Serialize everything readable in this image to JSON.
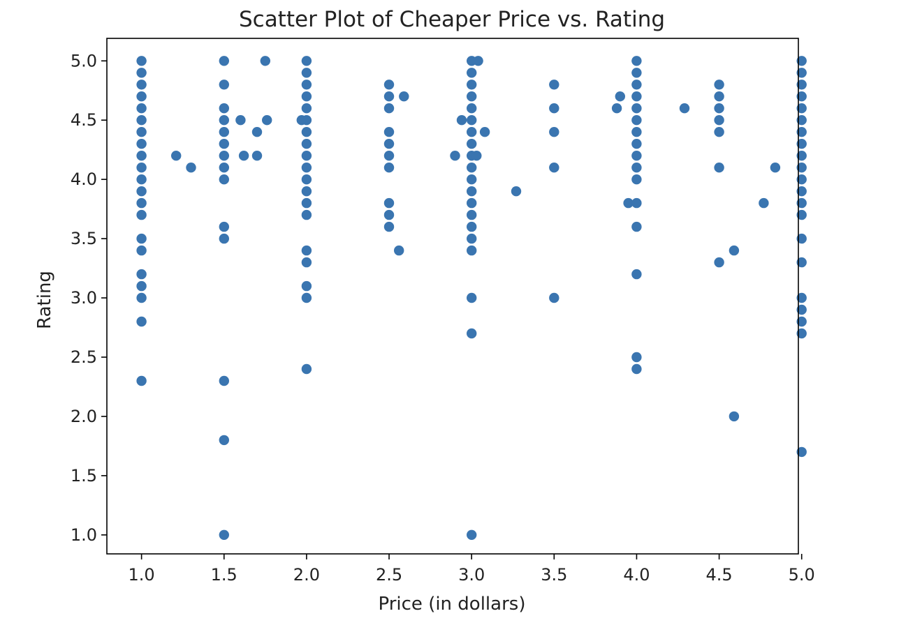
{
  "chart_data": {
    "type": "scatter",
    "title": "Scatter Plot of Cheaper Price vs. Rating",
    "xlabel": "Price (in dollars)",
    "ylabel": "Rating",
    "xlim": [
      0.79,
      4.98
    ],
    "ylim": [
      0.84,
      5.19
    ],
    "xticks": [
      1.0,
      1.5,
      2.0,
      2.5,
      3.0,
      3.5,
      4.0,
      4.5,
      5.0
    ],
    "xtick_labels": [
      "1.0",
      "1.5",
      "2.0",
      "2.5",
      "3.0",
      "3.5",
      "4.0",
      "4.5",
      "5.0"
    ],
    "yticks": [
      1.0,
      1.5,
      2.0,
      2.5,
      3.0,
      3.5,
      4.0,
      4.5,
      5.0
    ],
    "ytick_labels": [
      "1.0",
      "1.5",
      "2.0",
      "2.5",
      "3.0",
      "3.5",
      "4.0",
      "4.5",
      "5.0"
    ],
    "grid": false,
    "marker_color": "#3a75b0",
    "points": [
      [
        1.0,
        5.0
      ],
      [
        1.0,
        4.9
      ],
      [
        1.0,
        4.8
      ],
      [
        1.0,
        4.7
      ],
      [
        1.0,
        4.6
      ],
      [
        1.0,
        4.5
      ],
      [
        1.0,
        4.4
      ],
      [
        1.0,
        4.3
      ],
      [
        1.0,
        4.2
      ],
      [
        1.0,
        4.1
      ],
      [
        1.0,
        4.0
      ],
      [
        1.0,
        3.9
      ],
      [
        1.0,
        3.8
      ],
      [
        1.0,
        3.7
      ],
      [
        1.0,
        3.5
      ],
      [
        1.0,
        3.4
      ],
      [
        1.0,
        3.2
      ],
      [
        1.0,
        3.1
      ],
      [
        1.0,
        3.0
      ],
      [
        1.0,
        2.8
      ],
      [
        1.0,
        2.3
      ],
      [
        1.21,
        4.2
      ],
      [
        1.3,
        4.1
      ],
      [
        1.5,
        5.0
      ],
      [
        1.5,
        4.8
      ],
      [
        1.5,
        4.6
      ],
      [
        1.5,
        4.5
      ],
      [
        1.5,
        4.4
      ],
      [
        1.5,
        4.3
      ],
      [
        1.5,
        4.2
      ],
      [
        1.5,
        4.1
      ],
      [
        1.5,
        4.0
      ],
      [
        1.5,
        3.6
      ],
      [
        1.5,
        3.5
      ],
      [
        1.5,
        2.3
      ],
      [
        1.5,
        1.8
      ],
      [
        1.5,
        1.0
      ],
      [
        1.6,
        4.5
      ],
      [
        1.62,
        4.2
      ],
      [
        1.7,
        4.4
      ],
      [
        1.7,
        4.2
      ],
      [
        1.75,
        5.0
      ],
      [
        1.76,
        4.5
      ],
      [
        1.97,
        4.5
      ],
      [
        2.0,
        5.0
      ],
      [
        2.0,
        4.9
      ],
      [
        2.0,
        4.8
      ],
      [
        2.0,
        4.7
      ],
      [
        2.0,
        4.6
      ],
      [
        2.0,
        4.5
      ],
      [
        2.0,
        4.4
      ],
      [
        2.0,
        4.3
      ],
      [
        2.0,
        4.2
      ],
      [
        2.0,
        4.1
      ],
      [
        2.0,
        4.0
      ],
      [
        2.0,
        3.9
      ],
      [
        2.0,
        3.8
      ],
      [
        2.0,
        3.7
      ],
      [
        2.0,
        3.4
      ],
      [
        2.0,
        3.3
      ],
      [
        2.0,
        3.1
      ],
      [
        2.0,
        3.0
      ],
      [
        2.0,
        2.4
      ],
      [
        2.5,
        4.8
      ],
      [
        2.5,
        4.7
      ],
      [
        2.5,
        4.6
      ],
      [
        2.5,
        4.4
      ],
      [
        2.5,
        4.3
      ],
      [
        2.5,
        4.2
      ],
      [
        2.5,
        4.1
      ],
      [
        2.5,
        3.8
      ],
      [
        2.5,
        3.7
      ],
      [
        2.5,
        3.6
      ],
      [
        2.56,
        3.4
      ],
      [
        2.59,
        4.7
      ],
      [
        2.9,
        4.2
      ],
      [
        2.94,
        4.5
      ],
      [
        3.0,
        5.0
      ],
      [
        3.0,
        4.9
      ],
      [
        3.0,
        4.8
      ],
      [
        3.0,
        4.7
      ],
      [
        3.0,
        4.6
      ],
      [
        3.0,
        4.5
      ],
      [
        3.0,
        4.4
      ],
      [
        3.0,
        4.3
      ],
      [
        3.0,
        4.2
      ],
      [
        3.0,
        4.1
      ],
      [
        3.0,
        4.0
      ],
      [
        3.0,
        3.9
      ],
      [
        3.0,
        3.8
      ],
      [
        3.0,
        3.7
      ],
      [
        3.0,
        3.6
      ],
      [
        3.0,
        3.5
      ],
      [
        3.0,
        3.4
      ],
      [
        3.0,
        3.0
      ],
      [
        3.0,
        2.7
      ],
      [
        3.0,
        1.0
      ],
      [
        3.03,
        4.2
      ],
      [
        3.04,
        5.0
      ],
      [
        3.08,
        4.4
      ],
      [
        3.27,
        3.9
      ],
      [
        3.5,
        4.8
      ],
      [
        3.5,
        4.6
      ],
      [
        3.5,
        4.4
      ],
      [
        3.5,
        4.1
      ],
      [
        3.5,
        3.0
      ],
      [
        3.88,
        4.6
      ],
      [
        3.9,
        4.7
      ],
      [
        3.95,
        3.8
      ],
      [
        4.0,
        5.0
      ],
      [
        4.0,
        4.9
      ],
      [
        4.0,
        4.8
      ],
      [
        4.0,
        4.7
      ],
      [
        4.0,
        4.6
      ],
      [
        4.0,
        4.5
      ],
      [
        4.0,
        4.4
      ],
      [
        4.0,
        4.3
      ],
      [
        4.0,
        4.2
      ],
      [
        4.0,
        4.1
      ],
      [
        4.0,
        4.0
      ],
      [
        4.0,
        3.8
      ],
      [
        4.0,
        3.6
      ],
      [
        4.0,
        3.2
      ],
      [
        4.0,
        2.5
      ],
      [
        4.0,
        2.4
      ],
      [
        4.29,
        4.6
      ],
      [
        4.5,
        4.8
      ],
      [
        4.5,
        4.7
      ],
      [
        4.5,
        4.6
      ],
      [
        4.5,
        4.5
      ],
      [
        4.5,
        4.4
      ],
      [
        4.5,
        4.1
      ],
      [
        4.5,
        3.3
      ],
      [
        4.59,
        3.4
      ],
      [
        4.59,
        2.0
      ],
      [
        4.77,
        3.8
      ],
      [
        4.84,
        4.1
      ],
      [
        5.0,
        5.0
      ],
      [
        5.0,
        4.9
      ],
      [
        5.0,
        4.8
      ],
      [
        5.0,
        4.7
      ],
      [
        5.0,
        4.6
      ],
      [
        5.0,
        4.5
      ],
      [
        5.0,
        4.4
      ],
      [
        5.0,
        4.3
      ],
      [
        5.0,
        4.2
      ],
      [
        5.0,
        4.1
      ],
      [
        5.0,
        4.0
      ],
      [
        5.0,
        3.9
      ],
      [
        5.0,
        3.8
      ],
      [
        5.0,
        3.7
      ],
      [
        5.0,
        3.5
      ],
      [
        5.0,
        3.3
      ],
      [
        5.0,
        3.0
      ],
      [
        5.0,
        2.9
      ],
      [
        5.0,
        2.8
      ],
      [
        5.0,
        2.7
      ],
      [
        5.0,
        1.7
      ]
    ]
  }
}
